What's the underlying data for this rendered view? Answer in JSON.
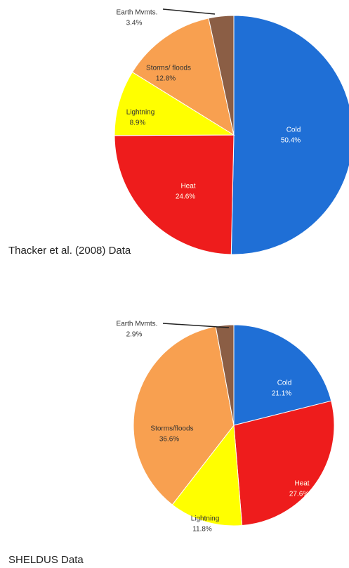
{
  "chart_data": [
    {
      "type": "pie",
      "title": "Thacker et al. (2008) Data",
      "categories": [
        "Cold",
        "Heat",
        "Lightning",
        "Storms/ floods",
        "Earth Mvmts."
      ],
      "values": [
        50.4,
        24.6,
        8.9,
        12.8,
        3.4
      ],
      "value_labels": [
        "50.4%",
        "24.6%",
        "8.9%",
        "12.8%",
        "3.4%"
      ],
      "colors": [
        "#1f6fd6",
        "#ee1c1c",
        "#ffff00",
        "#f8a050",
        "#8b5e45"
      ]
    },
    {
      "type": "pie",
      "title": "SHELDUS Data",
      "categories": [
        "Cold",
        "Heat",
        "Lightning",
        "Storms/floods",
        "Earth Mvmts."
      ],
      "values": [
        21.1,
        27.6,
        11.8,
        36.6,
        2.9
      ],
      "value_labels": [
        "21.1%",
        "27.6%",
        "11.8%",
        "36.6%",
        "2.9%"
      ],
      "colors": [
        "#1f6fd6",
        "#ee1c1c",
        "#ffff00",
        "#f8a050",
        "#8b5e45"
      ]
    }
  ]
}
